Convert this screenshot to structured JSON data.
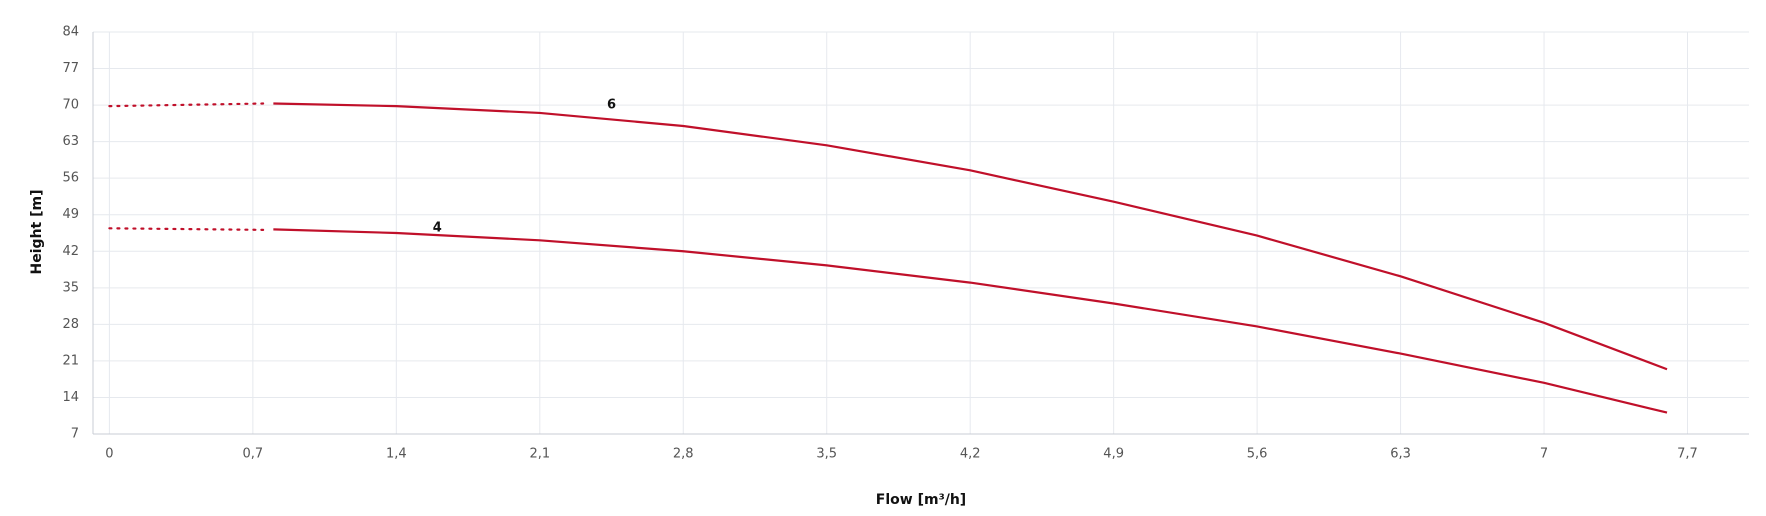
{
  "chart_data": {
    "type": "line",
    "xlabel": "Flow [m³/h]",
    "ylabel": "Height [m]",
    "xlim": [
      -0.08,
      8.0
    ],
    "ylim": [
      7,
      84
    ],
    "xticks": [
      0,
      {
        "value": 0.7,
        "label": "0,7"
      },
      {
        "value": 1.4,
        "label": "1,4"
      },
      {
        "value": 2.1,
        "label": "2,1"
      },
      {
        "value": 2.8,
        "label": "2,8"
      },
      {
        "value": 3.5,
        "label": "3,5"
      },
      {
        "value": 4.2,
        "label": "4,2"
      },
      {
        "value": 4.9,
        "label": "4,9"
      },
      {
        "value": 5.6,
        "label": "5,6"
      },
      {
        "value": 6.3,
        "label": "6,3"
      },
      7,
      {
        "value": 7.7,
        "label": "7,7"
      }
    ],
    "yticks": [
      7,
      14,
      21,
      28,
      35,
      42,
      49,
      56,
      63,
      70,
      77,
      84
    ],
    "grid": true,
    "series": [
      {
        "name": "6",
        "color": "#c0102a",
        "x": [
          0.8,
          1.4,
          2.1,
          2.8,
          3.5,
          4.2,
          4.9,
          5.6,
          6.3,
          7,
          7.6
        ],
        "values": [
          70.3,
          69.8,
          68.5,
          66,
          62.3,
          57.5,
          51.5,
          45,
          37.2,
          28.3,
          19.4
        ],
        "dotted": {
          "x": [
            0,
            0.75
          ],
          "values": [
            69.8,
            70.3
          ]
        },
        "label_at": [
          2.45,
          70
        ]
      },
      {
        "name": "4",
        "color": "#c0102a",
        "x": [
          0.8,
          1.4,
          2.1,
          2.8,
          3.5,
          4.2,
          4.9,
          5.6,
          6.3,
          7,
          7.6
        ],
        "values": [
          46.2,
          45.5,
          44.1,
          42,
          39.3,
          36,
          32,
          27.6,
          22.4,
          16.8,
          11.1
        ],
        "dotted": {
          "x": [
            0,
            0.75
          ],
          "values": [
            46.4,
            46.1
          ]
        },
        "label_at": [
          1.6,
          46.5
        ]
      }
    ]
  }
}
